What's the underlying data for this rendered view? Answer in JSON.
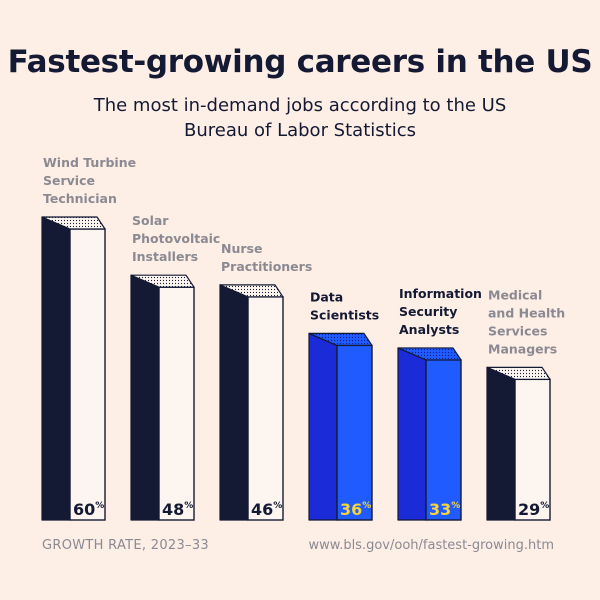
{
  "header": {
    "title": "Fastest-growing careers in the US",
    "subtitle": "The most in-demand jobs according to the US Bureau of Labor Statistics"
  },
  "footer": {
    "left": "GROWTH RATE, 2023–33",
    "right": "www.bls.gov/ooh/fastest-growing.htm"
  },
  "colors": {
    "background": "#fdeee6",
    "dark": "#141a33",
    "light_face": "#fdf6f0",
    "highlight_face": "#1f5bff",
    "highlight_side": "#1c2bd8",
    "highlight_text": "#f5d53a",
    "muted_label": "#8b8a92"
  },
  "chart_data": {
    "type": "bar",
    "unit": "%",
    "ylim": [
      0,
      60
    ],
    "categories": [
      "Wind Turbine Service Technician",
      "Solar Photovoltaic Installers",
      "Nurse Practitioners",
      "Data Scientists",
      "Information Security Analysts",
      "Medical and Health Services Managers"
    ],
    "category_lines": [
      [
        "Wind Turbine",
        "Service",
        "Technician"
      ],
      [
        "Solar",
        "Photovoltaic",
        "Installers"
      ],
      [
        "Nurse",
        "Practitioners"
      ],
      [
        "Data",
        "Scientists"
      ],
      [
        "Information",
        "Security",
        "Analysts"
      ],
      [
        "Medical",
        "and Health",
        "Services",
        "Managers"
      ]
    ],
    "values": [
      60,
      48,
      46,
      36,
      33,
      29
    ],
    "highlighted": [
      false,
      false,
      false,
      true,
      true,
      false
    ],
    "value_labels": [
      "60",
      "48",
      "46",
      "36",
      "33",
      "29"
    ]
  }
}
